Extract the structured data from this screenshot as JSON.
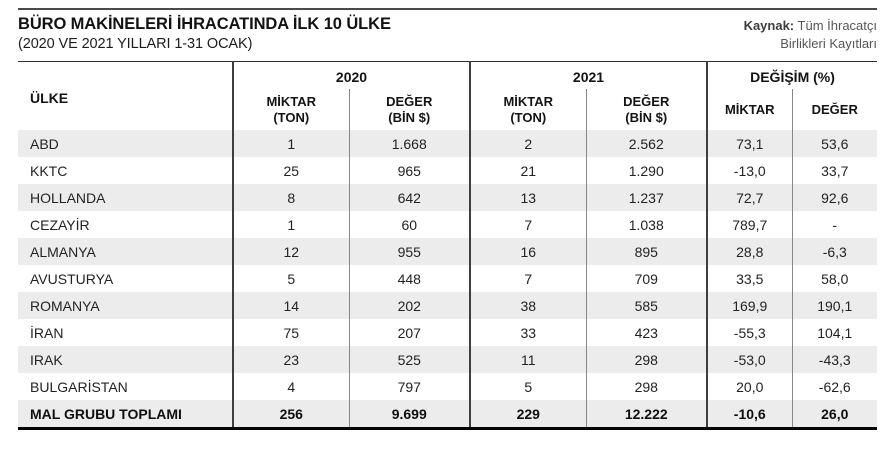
{
  "page": {
    "title": "BÜRO MAKİNELERİ İHRACATINDA İLK 10 ÜLKE",
    "subtitle": "(2020 VE 2021 YILLARI 1-31 OCAK)",
    "source": {
      "label": "Kaynak:",
      "line1": "Tüm İhracatçı",
      "line2": "Birlikleri Kayıtları"
    }
  },
  "colors": {
    "row_stripe": "#ececec",
    "group_separator": "#3e3e40",
    "sub_separator": "#878787",
    "bottom_rule": "#050505",
    "top_rule": "#4a4a4d"
  },
  "chart_data": {
    "type": "table",
    "title": "BÜRO MAKİNELERİ İHRACATINDA İLK 10 ÜLKE (2020 VE 2021 YILLARI 1-31 OCAK)",
    "country_header": "ÜLKE",
    "column_groups": [
      "2020",
      "2021",
      "DEĞİŞİM (%)"
    ],
    "sub_labels": {
      "miktar": "MİKTAR",
      "ton": "(TON)",
      "deger": "DEĞER",
      "bin": "(BİN $)"
    },
    "rows": [
      {
        "country": "ABD",
        "m2020": "1",
        "d2020": "1.668",
        "m2021": "2",
        "d2021": "2.562",
        "dm": "73,1",
        "dd": "53,6"
      },
      {
        "country": "KKTC",
        "m2020": "25",
        "d2020": "965",
        "m2021": "21",
        "d2021": "1.290",
        "dm": "-13,0",
        "dd": "33,7"
      },
      {
        "country": "HOLLANDA",
        "m2020": "8",
        "d2020": "642",
        "m2021": "13",
        "d2021": "1.237",
        "dm": "72,7",
        "dd": "92,6"
      },
      {
        "country": "CEZAYİR",
        "m2020": "1",
        "d2020": "60",
        "m2021": "7",
        "d2021": "1.038",
        "dm": "789,7",
        "dd": "-"
      },
      {
        "country": "ALMANYA",
        "m2020": "12",
        "d2020": "955",
        "m2021": "16",
        "d2021": "895",
        "dm": "28,8",
        "dd": "-6,3"
      },
      {
        "country": "AVUSTURYA",
        "m2020": "5",
        "d2020": "448",
        "m2021": "7",
        "d2021": "709",
        "dm": "33,5",
        "dd": "58,0"
      },
      {
        "country": "ROMANYA",
        "m2020": "14",
        "d2020": "202",
        "m2021": "38",
        "d2021": "585",
        "dm": "169,9",
        "dd": "190,1"
      },
      {
        "country": "İRAN",
        "m2020": "75",
        "d2020": "207",
        "m2021": "33",
        "d2021": "423",
        "dm": "-55,3",
        "dd": "104,1"
      },
      {
        "country": "IRAK",
        "m2020": "23",
        "d2020": "525",
        "m2021": "11",
        "d2021": "298",
        "dm": "-53,0",
        "dd": "-43,3"
      },
      {
        "country": "BULGARİSTAN",
        "m2020": "4",
        "d2020": "797",
        "m2021": "5",
        "d2021": "298",
        "dm": "20,0",
        "dd": "-62,6"
      },
      {
        "country": "MAL GRUBU TOPLAMI",
        "m2020": "256",
        "d2020": "9.699",
        "m2021": "229",
        "d2021": "12.222",
        "dm": "-10,6",
        "dd": "26,0",
        "total": true
      }
    ]
  }
}
